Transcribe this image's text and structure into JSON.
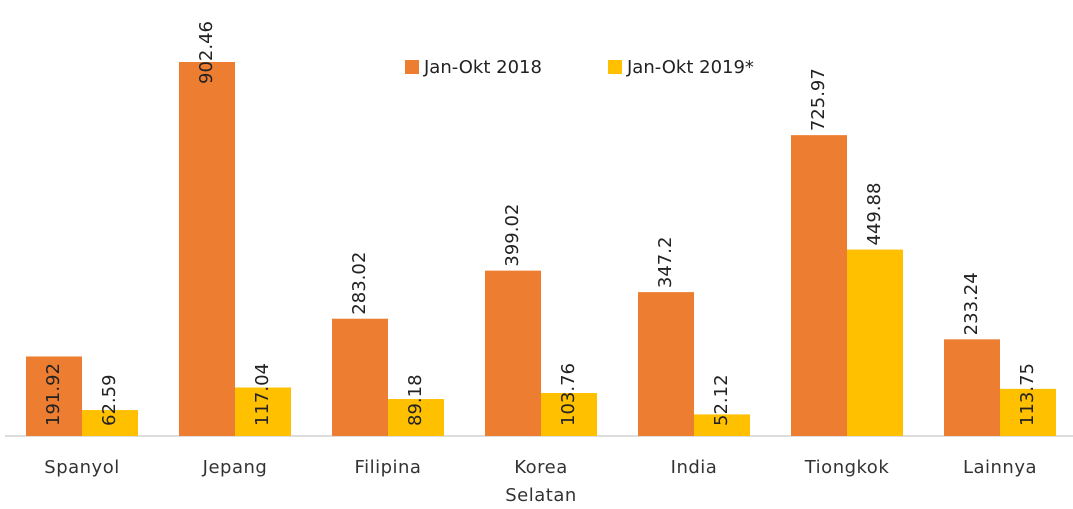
{
  "chart_data": {
    "type": "bar",
    "categories": [
      "Spanyol",
      "Jepang",
      "Filipina",
      "Korea Selatan",
      "India",
      "Tiongkok",
      "Lainnya"
    ],
    "series": [
      {
        "name": "Jan-Okt 2018",
        "color": "#ED7D31",
        "values": [
          191.92,
          902.46,
          283.02,
          399.02,
          347.2,
          725.97,
          233.24
        ]
      },
      {
        "name": "Jan-Okt 2019*",
        "color": "#FFC000",
        "values": [
          62.59,
          117.04,
          89.18,
          103.76,
          52.12,
          449.88,
          113.75
        ]
      }
    ],
    "legend": "top"
  }
}
